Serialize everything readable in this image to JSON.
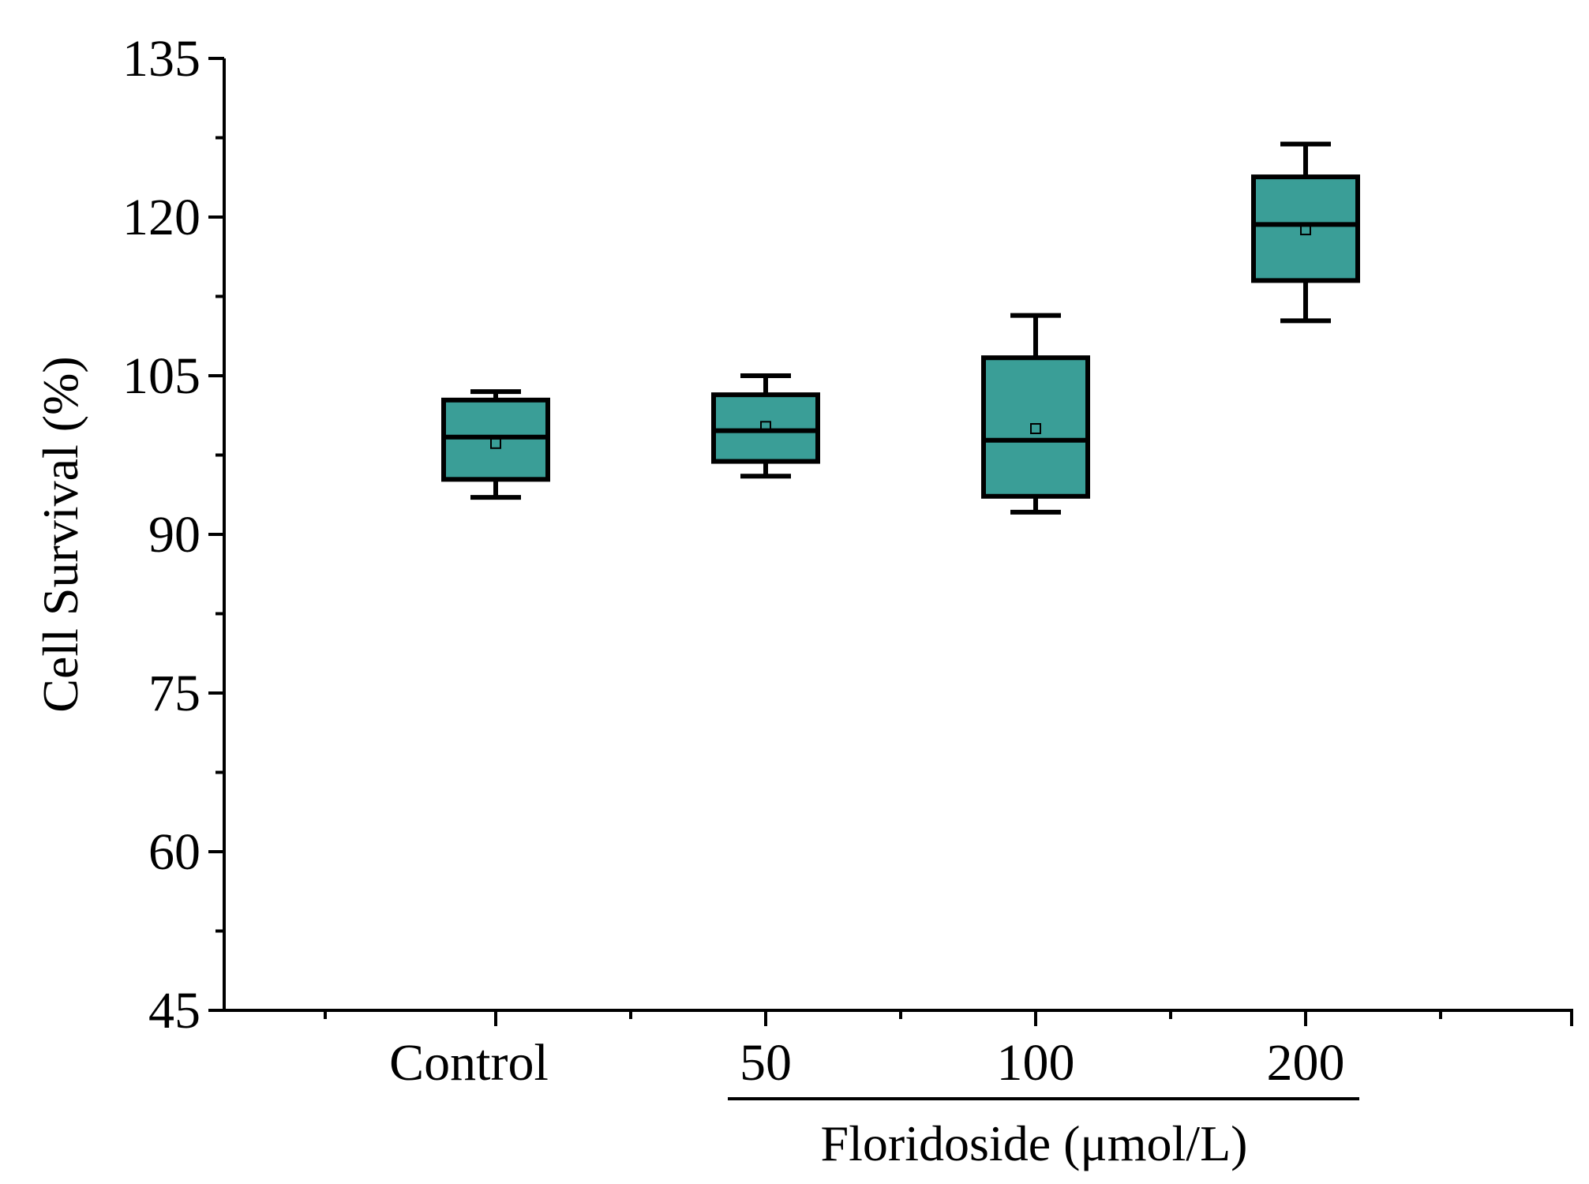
{
  "chart_data": {
    "type": "box",
    "title": "",
    "ylabel": "Cell Survival (%)",
    "xlabel_group": "Floridoside (μmol/L)",
    "group_categories": [
      "50",
      "100",
      "200"
    ],
    "ylim": [
      45,
      135
    ],
    "yticks": [
      45,
      60,
      75,
      90,
      105,
      120,
      135
    ],
    "ytick_labels": [
      "45",
      "60",
      "75",
      "90",
      "105",
      "120",
      "135"
    ],
    "minor_ticks": true,
    "grid": false,
    "legend": "none",
    "box_color": "#3a9e97",
    "categories": [
      "Control",
      "50",
      "100",
      "200"
    ],
    "boxes": [
      {
        "category": "Control",
        "whisker_low": 93.5,
        "q1": 95.2,
        "median": 99.2,
        "q3": 102.7,
        "whisker_high": 103.5,
        "mean": 98.6
      },
      {
        "category": "50",
        "whisker_low": 95.5,
        "q1": 96.9,
        "median": 99.8,
        "q3": 103.2,
        "whisker_high": 105.0,
        "mean": 100.2
      },
      {
        "category": "100",
        "whisker_low": 92.1,
        "q1": 93.6,
        "median": 98.9,
        "q3": 106.7,
        "whisker_high": 110.7,
        "mean": 100.0
      },
      {
        "category": "200",
        "whisker_low": 110.2,
        "q1": 114.0,
        "median": 119.3,
        "q3": 123.8,
        "whisker_high": 126.9,
        "mean": 118.8
      }
    ]
  }
}
